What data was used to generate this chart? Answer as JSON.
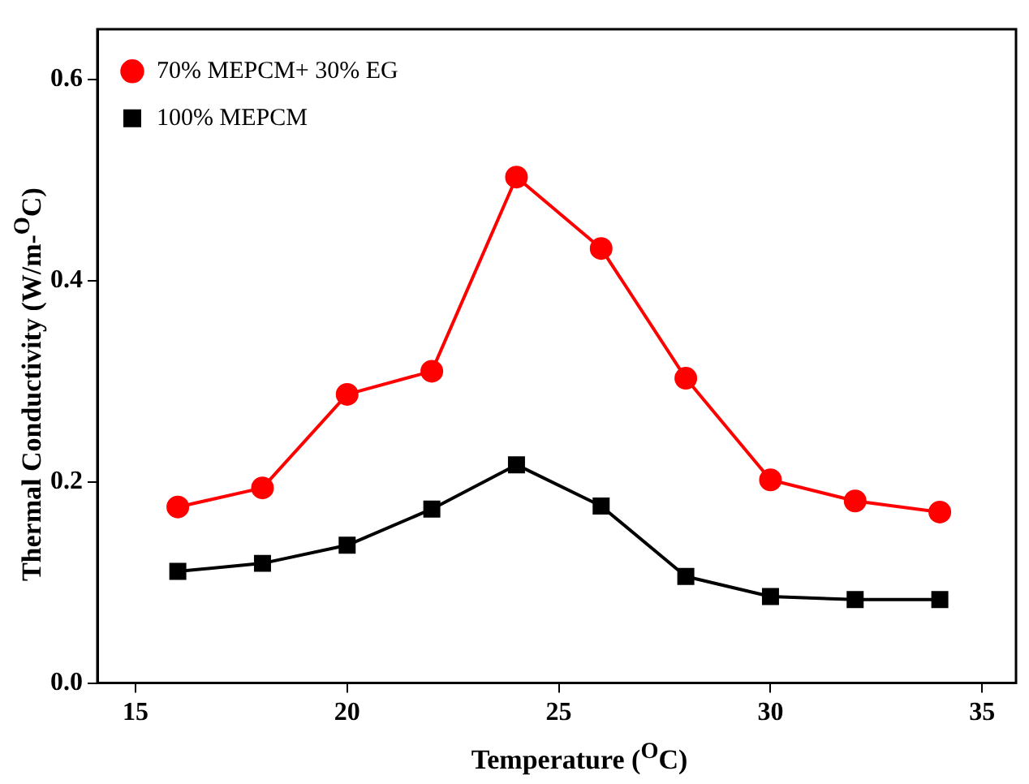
{
  "chart_data": {
    "type": "line",
    "xlabel": "Temperature ($^{O}$C)",
    "ylabel": "Thermal Conductivity (W/m-$^{O}$C)",
    "x": [
      16,
      18,
      20,
      22,
      24,
      26,
      28,
      30,
      32,
      34
    ],
    "xlim": [
      14.1,
      35.8
    ],
    "xticks": [
      15,
      20,
      25,
      30,
      35
    ],
    "ylim": [
      0,
      0.65
    ],
    "yticks": [
      {
        "value": 0,
        "label": "0.0"
      },
      0.2,
      0.4,
      0.6
    ],
    "series": [
      {
        "name": "70% MEPCM+ 30% EG",
        "color": "#ff0000",
        "marker": "circle",
        "values": [
          0.175,
          0.194,
          0.287,
          0.31,
          0.503,
          0.432,
          0.303,
          0.202,
          0.181,
          0.17
        ]
      },
      {
        "name": "100% MEPCM",
        "color": "#000000",
        "marker": "square",
        "values": [
          0.111,
          0.119,
          0.137,
          0.173,
          0.217,
          0.176,
          0.106,
          0.086,
          0.083,
          0.083
        ]
      }
    ],
    "legend": "top left",
    "grid": false,
    "line_style": "solid"
  }
}
